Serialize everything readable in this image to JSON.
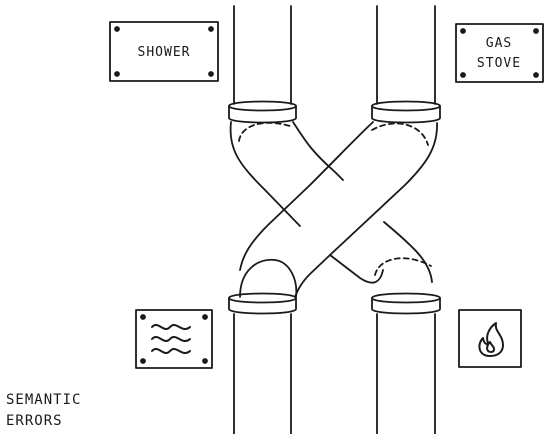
{
  "signs": {
    "top_left": {
      "label": "SHOWER"
    },
    "top_right": {
      "line1": "GAS",
      "line2": "STOVE"
    },
    "bottom_left": {
      "icon": "water-waves-icon"
    },
    "bottom_right": {
      "icon": "flame-icon"
    }
  },
  "caption": {
    "line1": "SEMANTIC",
    "line2": "ERRORS"
  },
  "colors": {
    "ink": "#1a1a1a",
    "paper": "#ffffff"
  }
}
